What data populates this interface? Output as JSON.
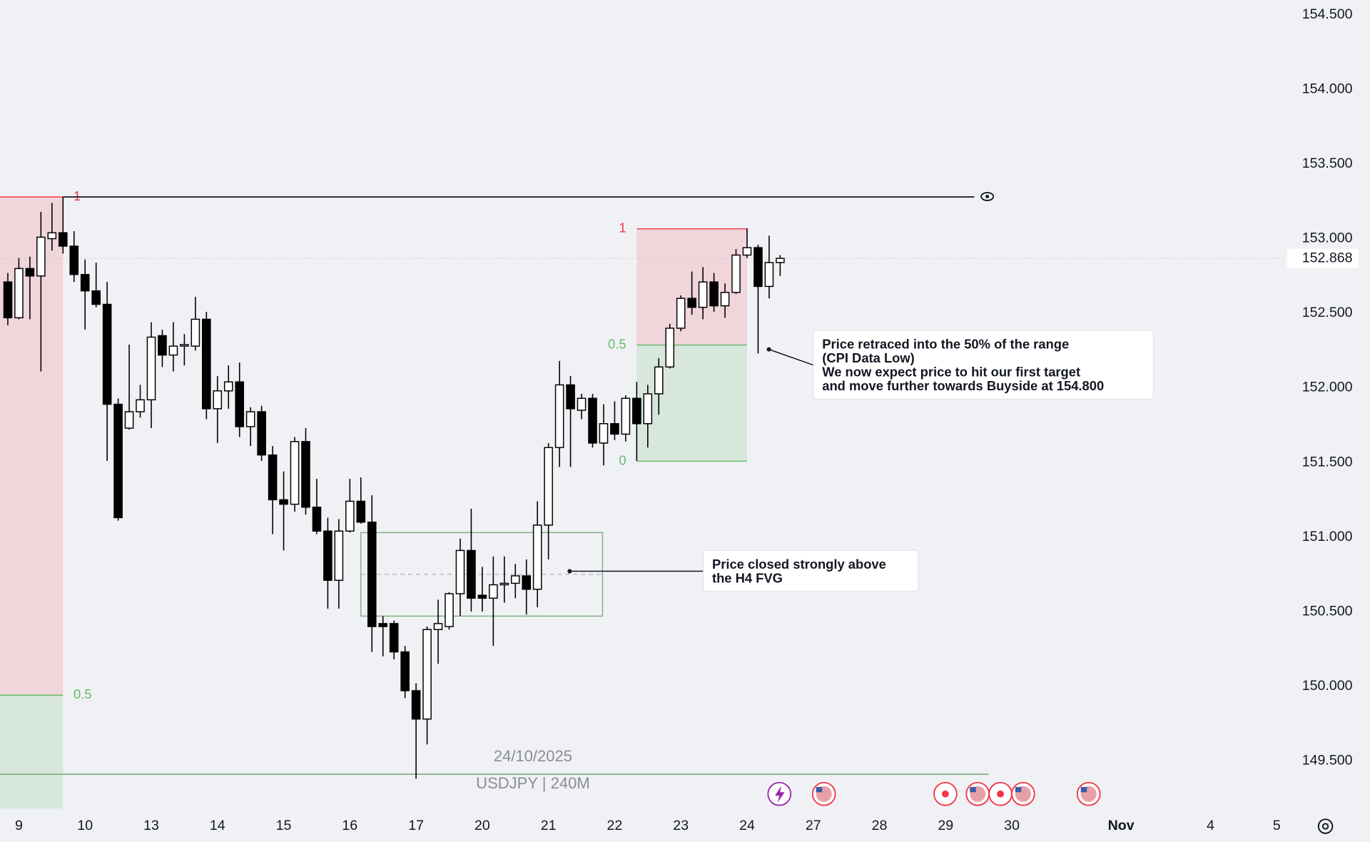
{
  "chart_data": {
    "type": "candlestick",
    "symbol_label": "USDJPY | 240M",
    "date_label": "24/10/2025",
    "up_color": "#ffffff",
    "down_color": "#000000",
    "x": [
      0,
      1,
      2,
      3,
      4,
      5,
      6,
      7,
      8,
      9,
      10,
      11,
      12,
      13,
      14,
      15,
      16,
      17,
      18,
      19,
      20,
      21,
      22,
      23,
      24,
      25,
      26,
      27,
      28,
      29,
      30,
      31,
      32,
      33,
      34,
      35,
      36,
      37,
      38,
      39,
      40,
      41,
      42,
      43,
      44,
      45,
      46,
      47,
      48,
      49,
      50,
      51,
      52,
      53,
      54,
      55,
      56,
      57,
      58,
      59,
      60,
      61,
      62,
      63,
      64,
      65,
      66,
      67,
      68,
      69,
      70
    ],
    "open": [
      152.71,
      152.47,
      152.8,
      152.75,
      153.0,
      153.04,
      152.95,
      152.76,
      152.65,
      152.56,
      151.89,
      151.73,
      151.84,
      151.92,
      152.35,
      152.22,
      152.28,
      152.28,
      152.46,
      151.86,
      151.98,
      152.04,
      151.74,
      151.84,
      151.55,
      151.25,
      151.22,
      151.64,
      151.2,
      151.04,
      150.71,
      151.04,
      151.24,
      151.1,
      150.42,
      150.42,
      150.23,
      149.97,
      149.78,
      150.38,
      150.4,
      150.62,
      150.91,
      150.61,
      150.59,
      150.68,
      150.69,
      150.74,
      150.65,
      151.08,
      151.6,
      152.02,
      151.85,
      151.93,
      151.63,
      151.76,
      151.69,
      151.93,
      151.76,
      151.96,
      152.14,
      152.4,
      152.6,
      152.54,
      152.71,
      152.55,
      152.64,
      152.89,
      152.94,
      152.68,
      152.84
    ],
    "high": [
      152.77,
      152.87,
      152.88,
      153.18,
      153.24,
      153.28,
      153.05,
      152.86,
      152.84,
      152.71,
      151.93,
      152.29,
      152.02,
      152.44,
      152.39,
      152.44,
      152.36,
      152.61,
      152.51,
      152.08,
      152.15,
      152.17,
      151.87,
      151.88,
      151.61,
      151.44,
      151.67,
      151.73,
      151.39,
      151.13,
      151.12,
      151.39,
      151.4,
      151.28,
      150.47,
      150.44,
      150.27,
      150.02,
      150.4,
      150.58,
      150.63,
      150.99,
      151.19,
      150.8,
      150.87,
      150.87,
      150.82,
      150.85,
      151.24,
      151.63,
      152.18,
      152.08,
      151.96,
      151.96,
      151.89,
      151.91,
      151.95,
      152.04,
      152.02,
      152.2,
      152.43,
      152.62,
      152.78,
      152.81,
      152.77,
      152.7,
      152.93,
      153.07,
      152.96,
      153.02,
      152.89
    ],
    "low": [
      152.42,
      152.46,
      152.46,
      152.11,
      152.92,
      152.9,
      152.71,
      152.39,
      152.54,
      151.51,
      151.11,
      151.72,
      151.8,
      151.73,
      152.14,
      152.11,
      152.15,
      152.25,
      151.79,
      151.63,
      151.86,
      151.67,
      151.61,
      151.51,
      151.02,
      150.91,
      151.17,
      151.15,
      151.02,
      150.52,
      150.52,
      151.03,
      151.09,
      150.23,
      150.2,
      150.18,
      149.92,
      149.38,
      149.61,
      150.15,
      150.38,
      150.47,
      150.5,
      150.5,
      150.27,
      150.56,
      150.59,
      150.48,
      150.53,
      150.85,
      151.47,
      151.47,
      151.79,
      151.6,
      151.48,
      151.65,
      151.64,
      151.51,
      151.6,
      151.82,
      152.13,
      152.38,
      152.49,
      152.46,
      152.51,
      152.47,
      152.63,
      152.87,
      152.23,
      152.6,
      152.75
    ],
    "close": [
      152.47,
      152.8,
      152.75,
      153.01,
      153.04,
      152.95,
      152.76,
      152.65,
      152.56,
      151.89,
      151.13,
      151.84,
      151.92,
      152.34,
      152.22,
      152.28,
      152.29,
      152.46,
      151.86,
      151.98,
      152.04,
      151.74,
      151.84,
      151.55,
      151.25,
      151.22,
      151.64,
      151.2,
      151.04,
      150.71,
      151.04,
      151.24,
      151.1,
      150.4,
      150.4,
      150.23,
      149.97,
      149.78,
      150.38,
      150.42,
      150.62,
      150.91,
      150.59,
      150.59,
      150.68,
      150.69,
      150.74,
      150.65,
      151.08,
      151.6,
      152.02,
      151.86,
      151.93,
      151.63,
      151.76,
      151.69,
      151.93,
      151.76,
      151.96,
      152.14,
      152.4,
      152.6,
      152.54,
      152.71,
      152.55,
      152.64,
      152.89,
      152.94,
      152.68,
      152.84,
      152.868
    ],
    "xlim": [
      -0.71,
      115.7
    ],
    "ylim": [
      149.18,
      154.6
    ],
    "yticks": [
      {
        "value": 149.5,
        "label": "149.500"
      },
      {
        "value": 150,
        "label": "150.000"
      },
      {
        "value": 150.5,
        "label": "150.500"
      },
      {
        "value": 151,
        "label": "151.000"
      },
      {
        "value": 151.5,
        "label": "151.500"
      },
      {
        "value": 152,
        "label": "152.000"
      },
      {
        "value": 152.5,
        "label": "152.500"
      },
      {
        "value": 153,
        "label": "153.000"
      },
      {
        "value": 153.5,
        "label": "153.500"
      },
      {
        "value": 154,
        "label": "154.000"
      },
      {
        "value": 154.5,
        "label": "154.500"
      }
    ],
    "xticks": [
      {
        "value": 1,
        "label": "9"
      },
      {
        "value": 7,
        "label": "10"
      },
      {
        "value": 13,
        "label": "13"
      },
      {
        "value": 19,
        "label": "14"
      },
      {
        "value": 25,
        "label": "15"
      },
      {
        "value": 31,
        "label": "16"
      },
      {
        "value": 37,
        "label": "17"
      },
      {
        "value": 43,
        "label": "20"
      },
      {
        "value": 49,
        "label": "21"
      },
      {
        "value": 55,
        "label": "22"
      },
      {
        "value": 61,
        "label": "23"
      },
      {
        "value": 67,
        "label": "24"
      },
      {
        "value": 73,
        "label": "27"
      },
      {
        "value": 79,
        "label": "28"
      },
      {
        "value": 85,
        "label": "29"
      },
      {
        "value": 91,
        "label": "30"
      },
      {
        "value": 100.9,
        "label": "Nov"
      },
      {
        "value": 109,
        "label": "4"
      },
      {
        "value": 115,
        "label": "5"
      }
    ],
    "ranges": [
      {
        "x": [
          -0.71,
          5
        ],
        "top": 153.28,
        "bottom": 146.6,
        "levels": [
          1,
          0.5
        ]
      },
      {
        "x": [
          57,
          67
        ],
        "top": 153.066,
        "bottom": 151.508,
        "levels": [
          1,
          0.5,
          0
        ]
      }
    ],
    "lines": [
      {
        "price": 153.28,
        "x": [
          5,
          87.6
        ],
        "color": "#131722"
      },
      {
        "price": 149.41,
        "x": [
          -0.71,
          88.9
        ],
        "color": "#7fb07f"
      }
    ],
    "fvg": {
      "x": [
        32,
        53.9
      ],
      "top": 151.03,
      "bottom": 150.47
    },
    "annotations": [
      {
        "lines": [
          "Price retraced into the 50% of the range",
          "(CPI Data Low)",
          "We now expect price to hit our first target",
          "and move further towards Buyside at 154.800"
        ]
      },
      {
        "lines": [
          "Price closed strongly above",
          "the H4 FVG"
        ]
      }
    ]
  }
}
